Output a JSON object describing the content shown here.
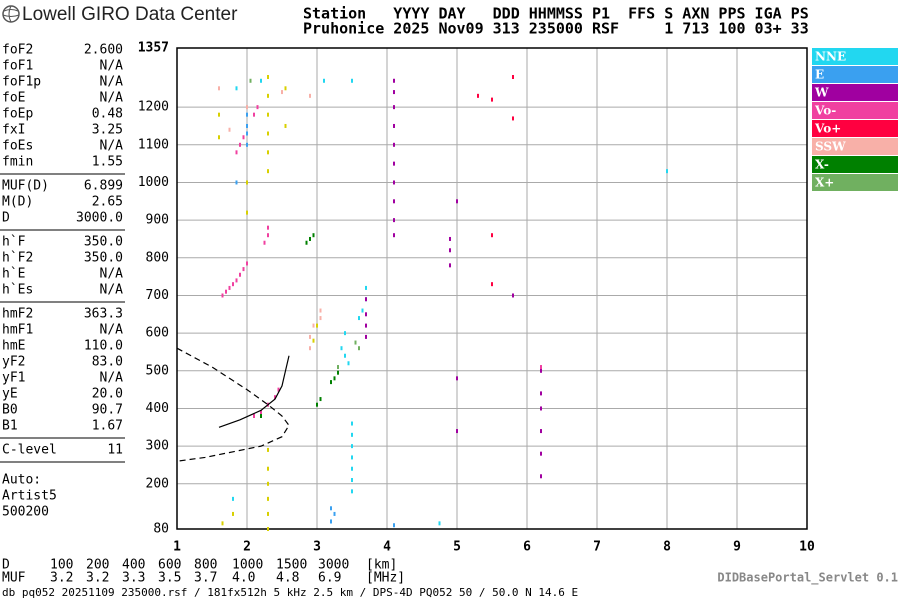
{
  "header": {
    "logo_text": "Lowell GIRO Data Center",
    "line1": "Station   YYYY DAY   DDD HHMMSS P1  FFS S AXN PPS IGA PS",
    "line2": "Pruhonice 2025 Nov09 313 235000 RSF     1 713 100 03+ 33"
  },
  "parameters": {
    "groups": [
      [
        [
          "foF2",
          "2.600"
        ],
        [
          "foF1",
          "N/A"
        ],
        [
          "foF1p",
          "N/A"
        ],
        [
          "foE",
          "N/A"
        ],
        [
          "foEp",
          "0.48"
        ],
        [
          "fxI",
          "3.25"
        ],
        [
          "foEs",
          "N/A"
        ],
        [
          "fmin",
          "1.55"
        ]
      ],
      [
        [
          "MUF(D)",
          "6.899"
        ],
        [
          "M(D)",
          "2.65"
        ],
        [
          "D",
          "3000.0"
        ]
      ],
      [
        [
          "h`F",
          "350.0"
        ],
        [
          "h`F2",
          "350.0"
        ],
        [
          "h`E",
          "N/A"
        ],
        [
          "h`Es",
          "N/A"
        ]
      ],
      [
        [
          "hmF2",
          "363.3"
        ],
        [
          "hmF1",
          "N/A"
        ],
        [
          "hmE",
          "110.0"
        ],
        [
          "yF2",
          "83.0"
        ],
        [
          "yF1",
          "N/A"
        ],
        [
          "yE",
          "20.0"
        ],
        [
          "B0",
          "90.7"
        ],
        [
          "B1",
          "1.67"
        ]
      ],
      [
        [
          "C-level",
          "11"
        ]
      ]
    ],
    "auto": [
      "Auto:",
      "Artist5",
      "500200"
    ]
  },
  "chart_data": {
    "type": "scatter",
    "xlim": [
      1,
      10
    ],
    "xticks": [
      1,
      2,
      3,
      4,
      5,
      6,
      7,
      8,
      9,
      10
    ],
    "ylim": [
      80,
      1357
    ],
    "yticks": [
      80,
      200,
      300,
      400,
      500,
      600,
      700,
      800,
      900,
      1000,
      1100,
      1200,
      1357
    ],
    "grid": true,
    "series": [
      {
        "name": "NNE",
        "color": "#22d7f0",
        "x": [
          3.5,
          3.5,
          3.5,
          3.5,
          3.5,
          3.5,
          3.5,
          3.45,
          3.4,
          3.35,
          3.4,
          3.6,
          3.65,
          3.7,
          3.7,
          3.2,
          1.8,
          3.1,
          3.5,
          2.2,
          4.75,
          8.0,
          1.85
        ],
        "values": [
          180,
          210,
          240,
          270,
          300,
          330,
          360,
          520,
          540,
          560,
          600,
          640,
          660,
          690,
          720,
          100,
          160,
          1270,
          1270,
          1270,
          95,
          1030,
          1250
        ]
      },
      {
        "name": "E",
        "color": "#3aa0f0",
        "x": [
          2.0,
          2.0,
          2.0,
          2.0,
          3.2,
          3.25,
          3.2,
          4.1,
          1.85
        ],
        "values": [
          1100,
          1130,
          1150,
          1180,
          100,
          120,
          135,
          90,
          1000
        ]
      },
      {
        "name": "W",
        "color": "#a000a0",
        "x": [
          4.1,
          4.1,
          4.1,
          4.1,
          4.1,
          4.1,
          4.1,
          4.1,
          4.1,
          4.1,
          3.7,
          3.7,
          3.7,
          3.7,
          6.2,
          6.2,
          6.2,
          6.2,
          6.2,
          6.2,
          5.8,
          5.0,
          5.0,
          5.0,
          4.9,
          4.9,
          4.9
        ],
        "values": [
          1270,
          1240,
          1200,
          1150,
          1100,
          1050,
          1000,
          950,
          900,
          860,
          590,
          620,
          650,
          690,
          500,
          440,
          400,
          340,
          280,
          220,
          700,
          480,
          340,
          950,
          850,
          820,
          780
        ]
      },
      {
        "name": "Vo-",
        "color": "#f040a0",
        "x": [
          1.65,
          1.7,
          1.75,
          1.8,
          1.85,
          1.9,
          1.95,
          2.0,
          2.25,
          2.3,
          2.3,
          1.85,
          1.9,
          1.95,
          2.1,
          2.15,
          2.1,
          2.2,
          2.3,
          2.4,
          2.45,
          6.2
        ],
        "values": [
          700,
          710,
          720,
          730,
          740,
          755,
          770,
          785,
          840,
          860,
          880,
          1080,
          1100,
          1120,
          1180,
          1200,
          380,
          390,
          410,
          430,
          450,
          510
        ]
      },
      {
        "name": "Vo+",
        "color": "#ff0040",
        "x": [
          5.5,
          5.8,
          5.5,
          5.5,
          5.3,
          5.8
        ],
        "values": [
          1220,
          1280,
          860,
          730,
          1230,
          1170
        ]
      },
      {
        "name": "SSW",
        "color": "#f8b0a8",
        "x": [
          2.9,
          2.9,
          2.95,
          3.05,
          3.05,
          1.6,
          2.5,
          2.9,
          2.0,
          1.75
        ],
        "values": [
          560,
          590,
          620,
          640,
          660,
          1250,
          1240,
          1230,
          1200,
          1140
        ]
      },
      {
        "name": "X-",
        "color": "#008000",
        "x": [
          2.9,
          2.95,
          3.0,
          3.05,
          3.2,
          3.25,
          3.3,
          2.2,
          2.85
        ],
        "values": [
          850,
          860,
          410,
          425,
          470,
          480,
          495,
          380,
          840
        ]
      },
      {
        "name": "X+",
        "color": "#70b060",
        "x": [
          3.3,
          3.6,
          3.55,
          2.05
        ],
        "values": [
          510,
          560,
          575,
          1270
        ]
      },
      {
        "color": "#d8d000",
        "x": [
          2.3,
          2.3,
          2.3,
          2.3,
          2.3,
          2.3,
          2.3,
          2.3,
          2.3,
          2.3,
          2.3,
          2.3,
          2.0,
          2.0,
          1.6,
          1.6,
          2.95,
          3.0,
          2.55,
          2.55,
          1.8,
          1.65
        ],
        "values": [
          1030,
          1080,
          1130,
          1180,
          1230,
          1280,
          80,
          120,
          160,
          200,
          240,
          290,
          920,
          1000,
          1120,
          1180,
          580,
          620,
          1150,
          1250,
          120,
          95
        ]
      }
    ],
    "trace": {
      "x": [
        1.6,
        1.9,
        2.2,
        2.4,
        2.5,
        2.55,
        2.6
      ],
      "values": [
        350,
        370,
        395,
        425,
        460,
        500,
        540
      ]
    },
    "profile": {
      "x": [
        1,
        1.5,
        2,
        2.3,
        2.5,
        2.6,
        2.5,
        2.2,
        1.8,
        1.4,
        1
      ],
      "values": [
        560,
        510,
        450,
        410,
        380,
        355,
        325,
        300,
        285,
        270,
        260
      ]
    }
  },
  "muf_table": {
    "rows": [
      [
        "D",
        "100",
        "200",
        "400",
        "600",
        "800",
        "1000",
        "1500",
        "3000",
        "[km]"
      ],
      [
        "MUF",
        "3.2",
        "3.2",
        "3.3",
        "3.5",
        "3.7",
        "4.0",
        "4.8",
        "6.9",
        "[MHz]"
      ]
    ]
  },
  "footer": {
    "servlet": "DIDBasePortal_Servlet 0.1",
    "info": "db pq052 20251109 235000.rsf / 181fx512h 5 kHz 2.5 km / DPS-4D PQ052 50 / 50.0 N 14.6 E"
  }
}
